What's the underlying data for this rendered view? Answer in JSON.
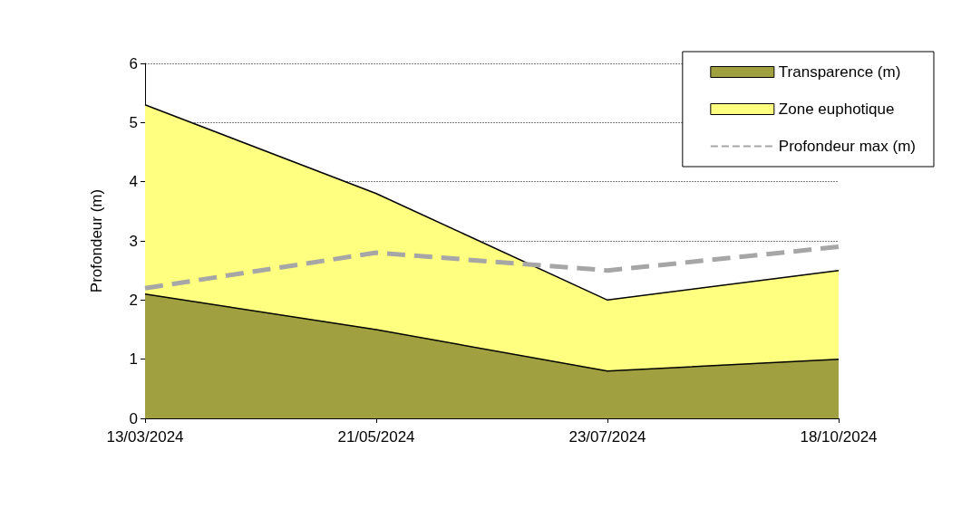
{
  "chart_data": {
    "type": "area",
    "ylabel": "Profondeur (m)",
    "categories": [
      "13/03/2024",
      "21/05/2024",
      "23/07/2024",
      "18/10/2024"
    ],
    "series": [
      {
        "name": "Transparence (m)",
        "color": "#a0a040",
        "values": [
          2.1,
          1.5,
          0.8,
          1.0
        ]
      },
      {
        "name": "Zone euphotique",
        "color": "#ffff80",
        "values": [
          5.3,
          3.8,
          2.0,
          2.5
        ]
      },
      {
        "name": "Profondeur max (m)",
        "type": "line",
        "color": "#a6a6a6",
        "line_style": "dashed",
        "values": [
          2.2,
          2.8,
          2.5,
          2.9
        ]
      }
    ],
    "ylim": [
      0,
      6
    ],
    "yticks": [
      0,
      1,
      2,
      3,
      4,
      5,
      6
    ],
    "grid": "y",
    "legend": "top right",
    "marker": "none"
  }
}
